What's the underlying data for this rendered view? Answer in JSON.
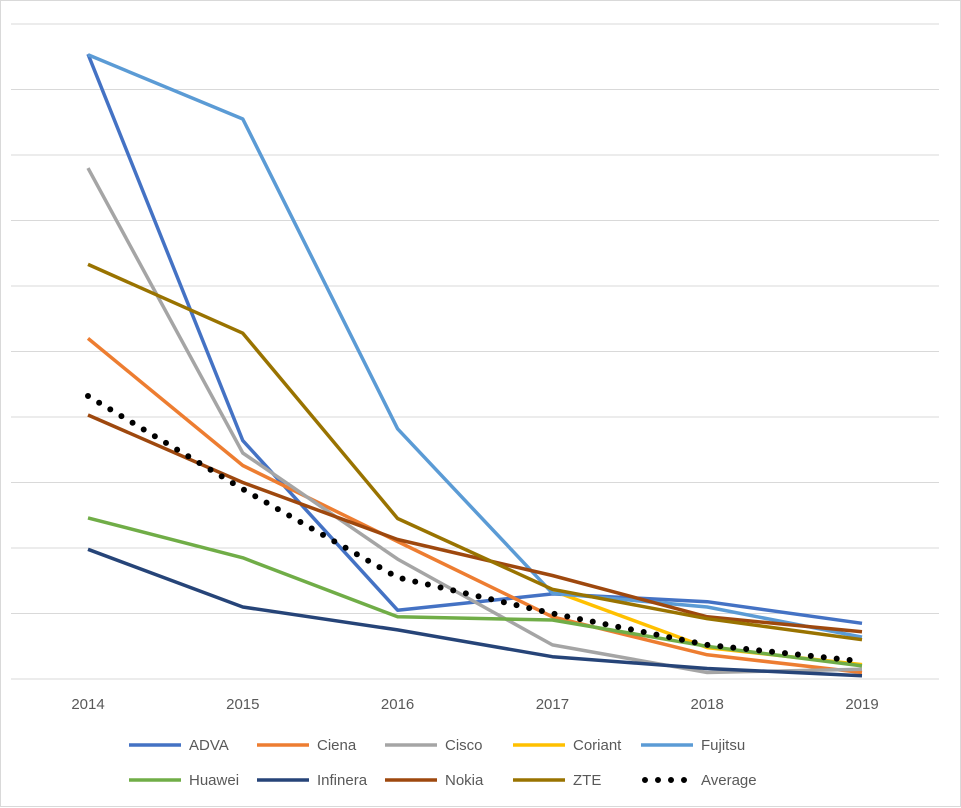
{
  "chart_data": {
    "type": "line",
    "title": "",
    "xlabel": "",
    "ylabel": "",
    "x": [
      "2014",
      "2015",
      "2016",
      "2017",
      "2018",
      "2019"
    ],
    "y_gridlines": 10,
    "ylim": [
      0,
      1
    ],
    "y_ticks_labeled": false,
    "grid": "horizontal",
    "legend_position": "bottom",
    "series": [
      {
        "name": "ADVA",
        "color": "#4472c4",
        "style": "solid",
        "values": [
          0.954,
          0.364,
          0.105,
          0.13,
          0.118,
          0.085
        ]
      },
      {
        "name": "Ciena",
        "color": "#ed7d31",
        "style": "solid",
        "values": [
          0.52,
          0.326,
          0.21,
          0.095,
          0.037,
          0.01
        ]
      },
      {
        "name": "Cisco",
        "color": "#a5a5a5",
        "style": "solid",
        "values": [
          0.78,
          0.345,
          0.183,
          0.052,
          0.01,
          0.015
        ]
      },
      {
        "name": "Coriant",
        "color": "#ffc000",
        "style": "solid",
        "values": [
          null,
          null,
          null,
          0.135,
          0.048,
          0.022
        ]
      },
      {
        "name": "Fujitsu",
        "color": "#5b9bd5",
        "style": "solid",
        "values": [
          0.953,
          0.855,
          0.382,
          0.131,
          0.11,
          0.064
        ]
      },
      {
        "name": "Huawei",
        "color": "#70ad47",
        "style": "solid",
        "values": [
          0.246,
          0.185,
          0.095,
          0.09,
          0.05,
          0.02
        ]
      },
      {
        "name": "Infinera",
        "color": "#264478",
        "style": "solid",
        "values": [
          0.198,
          0.11,
          0.075,
          0.034,
          0.016,
          0.005
        ]
      },
      {
        "name": "Nokia",
        "color": "#9e480e",
        "style": "solid",
        "values": [
          0.403,
          0.3,
          0.213,
          0.158,
          0.095,
          0.072
        ]
      },
      {
        "name": "ZTE",
        "color": "#997300",
        "style": "solid",
        "values": [
          0.633,
          0.528,
          0.245,
          0.137,
          0.092,
          0.06
        ]
      },
      {
        "name": "Average",
        "color": "#000000",
        "style": "dotted",
        "values": [
          0.432,
          0.29,
          0.155,
          0.1,
          0.052,
          0.027
        ]
      }
    ]
  }
}
